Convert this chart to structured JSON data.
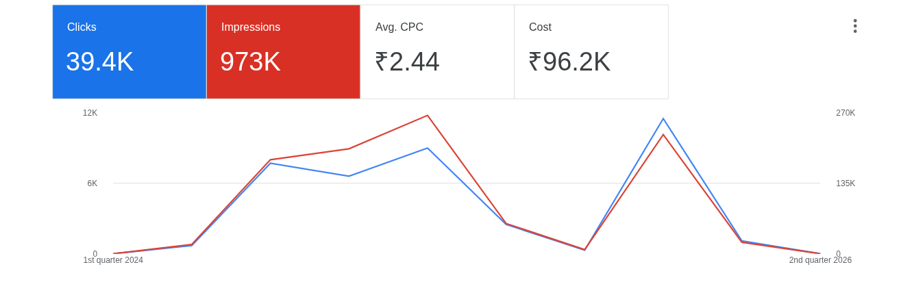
{
  "chart_data": [
    {
      "type": "other",
      "categories": [
        "Clicks",
        "Impressions",
        "Avg. CPC",
        "Cost"
      ],
      "value_labels": [
        "39.4K",
        "973K",
        "₹2.44",
        "₹96.2K"
      ],
      "colors": [
        "#1a73e8",
        "#d93025",
        "#ffffff",
        "#ffffff"
      ]
    },
    {
      "type": "line",
      "categories": [
        "1st quarter 2024",
        null,
        null,
        null,
        null,
        null,
        null,
        null,
        null,
        "2nd quarter 2026"
      ],
      "series": [
        {
          "color": "#4285f4",
          "values": [
            0,
            700,
            7700,
            6600,
            9000,
            2500,
            300,
            11500,
            1100,
            0
          ]
        },
        {
          "color": "#db4437",
          "axis": "y2",
          "values": [
            0,
            18000,
            180000,
            201000,
            265000,
            58000,
            8000,
            228000,
            22000,
            0
          ]
        }
      ],
      "ylim": [
        0,
        12000
      ],
      "yticks": [
        0,
        {
          "value": 6000,
          "label": "6K"
        },
        {
          "value": 12000,
          "label": "12K"
        }
      ],
      "y2lim": [
        0,
        270000
      ],
      "y2ticks": [
        0,
        {
          "value": 135000,
          "label": "135K"
        },
        {
          "value": 270000,
          "label": "270K"
        }
      ],
      "grid": "y",
      "marker": "none",
      "line_style": "solid"
    }
  ]
}
